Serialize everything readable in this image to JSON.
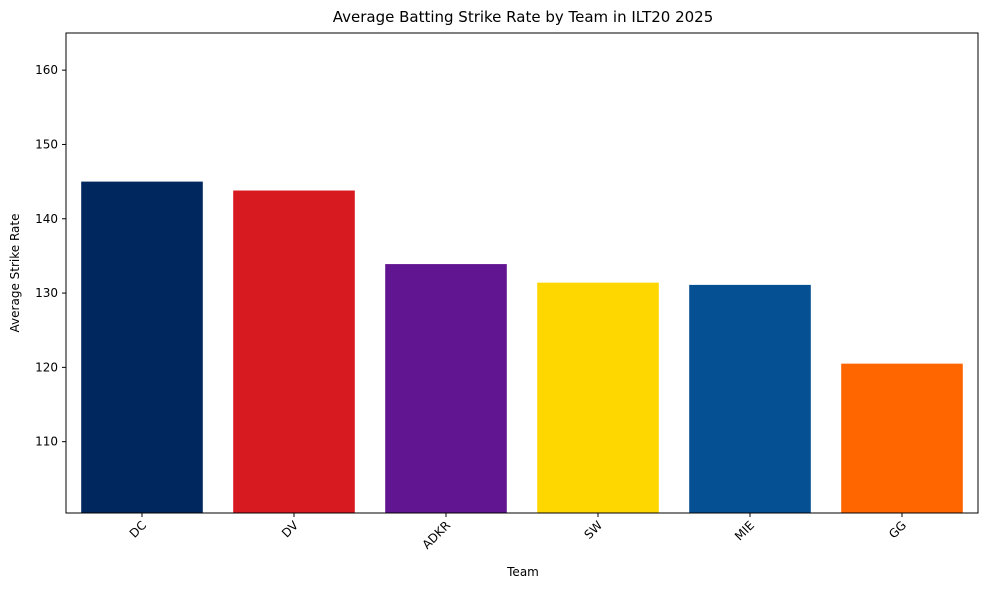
{
  "chart_data": {
    "type": "bar",
    "title": "Average Batting Strike Rate by Team in ILT20 2025",
    "xlabel": "Team",
    "ylabel": "Average Strike Rate",
    "categories": [
      "DC",
      "DV",
      "ADKR",
      "SW",
      "MIE",
      "GG"
    ],
    "values": [
      145.0,
      143.8,
      133.9,
      131.4,
      131.1,
      120.5
    ],
    "colors": [
      "#00285E",
      "#D71920",
      "#621590",
      "#FFD700",
      "#045093",
      "#FF6600"
    ],
    "ylim": [
      100.4,
      165.0
    ],
    "yticks": [
      110,
      120,
      130,
      140,
      150,
      160
    ],
    "xtick_rotation": 45,
    "grid": false,
    "legend": "none"
  }
}
